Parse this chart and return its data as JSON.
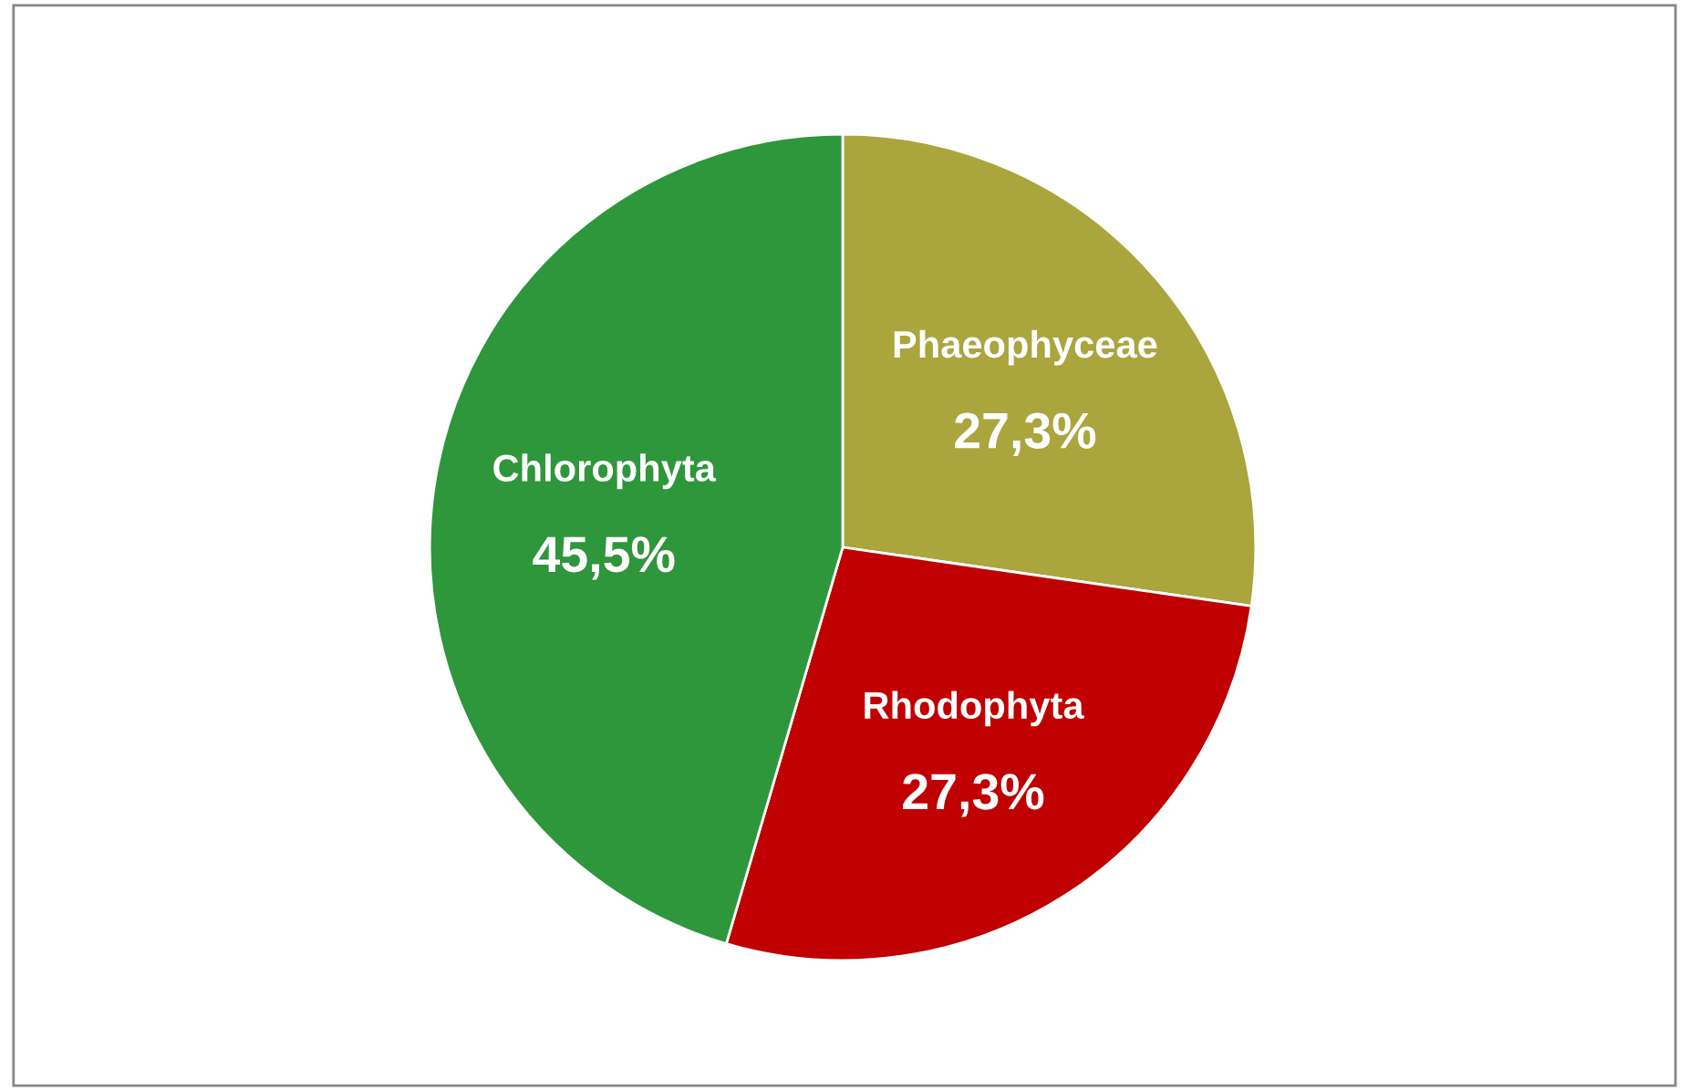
{
  "chart_data": {
    "type": "pie",
    "categories": [
      "Phaeophyceae",
      "Rhodophyta",
      "Chlorophyta"
    ],
    "values": [
      27.3,
      27.3,
      45.5
    ],
    "colors": [
      "#aaa53d",
      "#c00000",
      "#2e963b"
    ],
    "value_labels": [
      "27,3%",
      "27,3%",
      "45,5%"
    ],
    "legend": false
  }
}
